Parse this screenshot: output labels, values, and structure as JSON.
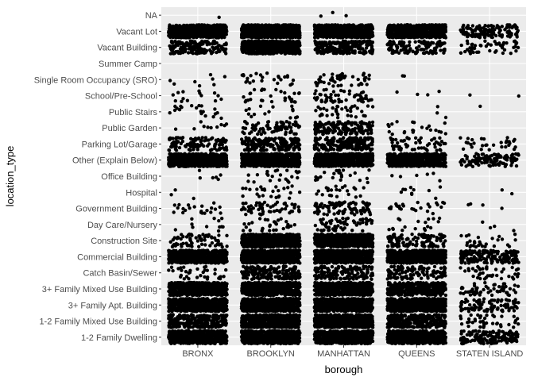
{
  "chart_data": {
    "type": "scatter",
    "jitter": true,
    "xlabel": "borough",
    "ylabel": "location_type",
    "grid": true,
    "legend": "none",
    "colors": {
      "panel": "#ebebeb",
      "grid": "#ffffff",
      "point": "#000000",
      "tick_text": "#4d4d4d"
    },
    "x_categories": [
      "BRONX",
      "BROOKLYN",
      "MANHATTAN",
      "QUEENS",
      "STATEN ISLAND"
    ],
    "y_categories": [
      "1-2 Family Dwelling",
      "1-2 Family Mixed Use Building",
      "3+ Family Apt. Building",
      "3+ Family Mixed Use Building",
      "Catch Basin/Sewer",
      "Commercial Building",
      "Construction Site",
      "Day Care/Nursery",
      "Government Building",
      "Hospital",
      "Office Building",
      "Other (Explain Below)",
      "Parking Lot/Garage",
      "Public Garden",
      "Public Stairs",
      "School/Pre-School",
      "Single Room Occupancy (SRO)",
      "Summer Camp",
      "Vacant Building",
      "Vacant Lot",
      "NA"
    ],
    "point_counts": [
      [
        600,
        600,
        600,
        600,
        140
      ],
      [
        240,
        600,
        600,
        280,
        40
      ],
      [
        600,
        600,
        600,
        600,
        90
      ],
      [
        600,
        600,
        600,
        400,
        55
      ],
      [
        35,
        170,
        150,
        120,
        40
      ],
      [
        600,
        600,
        600,
        600,
        170
      ],
      [
        70,
        600,
        600,
        110,
        28
      ],
      [
        12,
        30,
        60,
        18,
        4
      ],
      [
        22,
        60,
        95,
        25,
        4
      ],
      [
        3,
        25,
        22,
        10,
        2
      ],
      [
        6,
        22,
        22,
        6,
        0
      ],
      [
        600,
        600,
        600,
        600,
        110
      ],
      [
        110,
        160,
        200,
        55,
        30
      ],
      [
        10,
        80,
        160,
        22,
        0
      ],
      [
        20,
        15,
        35,
        3,
        1
      ],
      [
        14,
        30,
        55,
        4,
        2
      ],
      [
        8,
        25,
        45,
        2,
        0
      ],
      [
        0,
        0,
        0,
        0,
        0
      ],
      [
        160,
        600,
        240,
        120,
        50
      ],
      [
        600,
        600,
        600,
        600,
        130
      ],
      [
        1,
        0,
        3,
        0,
        0
      ]
    ]
  }
}
